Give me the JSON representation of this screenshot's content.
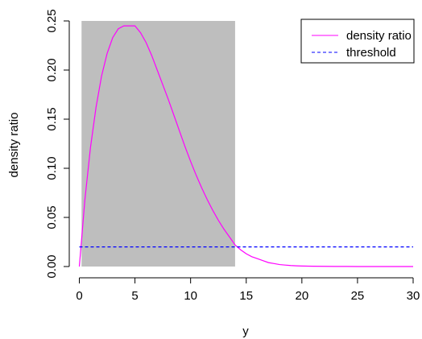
{
  "chart_data": {
    "type": "line",
    "title": "",
    "xlabel": "y",
    "ylabel": "density ratio",
    "xlim": [
      0,
      30
    ],
    "ylim": [
      0,
      0.25
    ],
    "x_ticks": [
      "0",
      "5",
      "10",
      "15",
      "20",
      "25",
      "30"
    ],
    "y_ticks": [
      "0.00",
      "0.05",
      "0.10",
      "0.15",
      "0.20",
      "0.25"
    ],
    "grid": false,
    "legend_position": "top-right",
    "shaded_region": {
      "x_from": 0.2,
      "x_to": 14,
      "y_from": 0,
      "y_to": 0.25,
      "color": "#bebebe"
    },
    "series": [
      {
        "name": "density ratio",
        "color": "#ff00ff",
        "style": "solid",
        "x": [
          0,
          0.5,
          1,
          1.5,
          2,
          2.5,
          3,
          3.5,
          4,
          4.5,
          5,
          5.5,
          6,
          6.5,
          7,
          7.5,
          8,
          8.5,
          9,
          9.5,
          10,
          10.5,
          11,
          11.5,
          12,
          12.5,
          13,
          13.5,
          14,
          14.5,
          15,
          15.5,
          16,
          16.5,
          17,
          17.5,
          18,
          18.5,
          19,
          19.5,
          20,
          21,
          22,
          23,
          24,
          25,
          26,
          27,
          28,
          29,
          30
        ],
        "values": [
          0,
          0.068,
          0.121,
          0.162,
          0.194,
          0.217,
          0.233,
          0.242,
          0.245,
          0.245,
          0.245,
          0.238,
          0.228,
          0.215,
          0.2,
          0.185,
          0.17,
          0.154,
          0.138,
          0.122,
          0.107,
          0.093,
          0.08,
          0.068,
          0.057,
          0.047,
          0.038,
          0.03,
          0.022,
          0.017,
          0.013,
          0.01,
          0.008,
          0.006,
          0.004,
          0.003,
          0.002,
          0.0015,
          0.001,
          0.0007,
          0.0005,
          0.0003,
          0.0002,
          0.0001,
          0.0001,
          0,
          0,
          0,
          0,
          0,
          0
        ]
      },
      {
        "name": "threshold",
        "color": "#0000ff",
        "style": "dashed",
        "x": [
          0,
          30
        ],
        "values": [
          0.02,
          0.02
        ]
      }
    ]
  }
}
